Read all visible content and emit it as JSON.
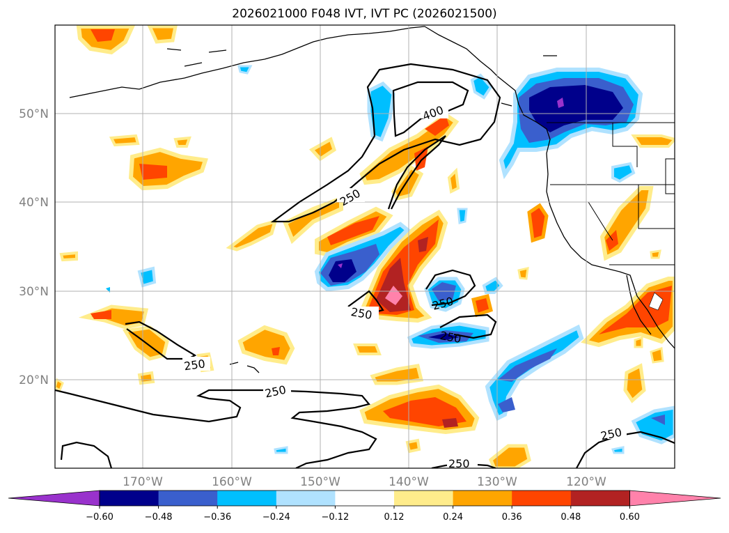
{
  "title": "2026021000 F048 IVT, IVT PC (2026021500)",
  "map": {
    "lon_labels": [
      "170°W",
      "160°W",
      "150°W",
      "140°W",
      "130°W",
      "120°W"
    ],
    "lat_labels": [
      "50°N",
      "40°N",
      "30°N",
      "20°N"
    ],
    "contour_labels": [
      "400",
      "250",
      "250",
      "250",
      "250",
      "250",
      "250",
      "250",
      "250"
    ]
  },
  "colorbar": {
    "ticks": [
      "−0.60",
      "−0.48",
      "−0.36",
      "−0.24",
      "−0.12",
      "0.12",
      "0.24",
      "0.36",
      "0.48",
      "0.60"
    ],
    "colors": [
      "#9932cc",
      "#00008b",
      "#3a5fcd",
      "#00bfff",
      "#b0e2ff",
      "#ffffff",
      "#ffec8b",
      "#ffa500",
      "#ff4500",
      "#b22222",
      "#ff82ab"
    ]
  }
}
